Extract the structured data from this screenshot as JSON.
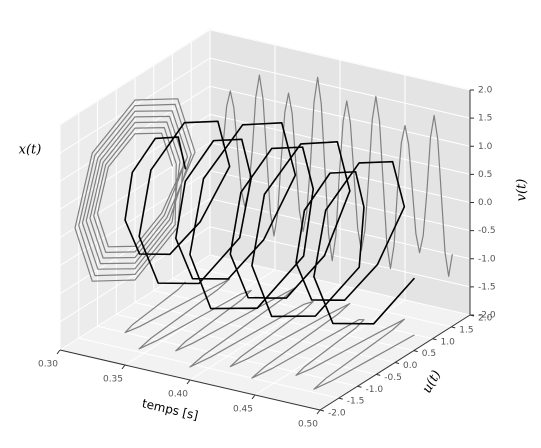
{
  "chart_data": {
    "type": "line3d",
    "xlabel": "temps [s]",
    "ylabel": "u(t)",
    "zlabel": "v(t)",
    "annotation": "x(t)",
    "color": "#000000",
    "projection_color": "#808080",
    "xlim": [
      0.3,
      0.5
    ],
    "ylim": [
      -2.0,
      2.0
    ],
    "zlim": [
      -2.0,
      2.0
    ],
    "xticks": [
      {
        "value": 0.3,
        "label": "0.30"
      },
      {
        "value": 0.35,
        "label": "0.35"
      },
      {
        "value": 0.4,
        "label": "0.40"
      },
      {
        "value": 0.45,
        "label": "0.45"
      },
      {
        "value": 0.5,
        "label": "0.50"
      }
    ],
    "yticks": [
      {
        "value": -2.0,
        "label": "-2.0"
      },
      {
        "value": -1.5,
        "label": "-1.5"
      },
      {
        "value": -1.0,
        "label": "-1.0"
      },
      {
        "value": -0.5,
        "label": "-0.5"
      },
      {
        "value": 0.0,
        "label": "0.0"
      },
      {
        "value": 0.5,
        "label": "0.5"
      },
      {
        "value": 1.0,
        "label": "1.0"
      },
      {
        "value": 1.5,
        "label": "1.5"
      },
      {
        "value": 2.0,
        "label": "2.0"
      }
    ],
    "zticks": [
      {
        "value": -2.0,
        "label": "-2.0"
      },
      {
        "value": -1.5,
        "label": "-1.5"
      },
      {
        "value": -1.0,
        "label": "-1.0"
      },
      {
        "value": -0.5,
        "label": "-0.5"
      },
      {
        "value": 0.0,
        "label": "0.0"
      },
      {
        "value": 0.5,
        "label": "0.5"
      },
      {
        "value": 1.0,
        "label": "1.0"
      },
      {
        "value": 1.5,
        "label": "1.5"
      },
      {
        "value": 2.0,
        "label": "2.0"
      }
    ],
    "t": [
      0.31,
      0.3128,
      0.3156,
      0.3184,
      0.3212,
      0.324,
      0.3268,
      0.3296,
      0.3324,
      0.3352,
      0.338,
      0.3408,
      0.3436,
      0.3464,
      0.3492,
      0.352,
      0.3548,
      0.3576,
      0.3604,
      0.3632,
      0.366,
      0.3688,
      0.3716,
      0.3744,
      0.3772,
      0.38,
      0.3828,
      0.3856,
      0.3884,
      0.3912,
      0.394,
      0.3968,
      0.3996,
      0.4024,
      0.4052,
      0.408,
      0.4108,
      0.4136,
      0.4164,
      0.4192,
      0.422,
      0.4248,
      0.4276,
      0.4304,
      0.4332,
      0.436,
      0.4388,
      0.4416,
      0.4444,
      0.4472,
      0.45,
      0.4528,
      0.4556,
      0.4584,
      0.4612,
      0.464,
      0.4668,
      0.4696,
      0.4724,
      0.4752,
      0.478,
      0.4808,
      0.4836,
      0.4864
    ],
    "u": [
      1,
      0.71,
      0,
      -0.71,
      -1,
      -0.71,
      0,
      0.71,
      1.4,
      0.99,
      0,
      -0.99,
      -1.4,
      -0.99,
      0,
      0.99,
      1.2,
      0.85,
      0,
      -0.85,
      -1.2,
      -0.85,
      0,
      0.85,
      1.6,
      1.14,
      0,
      -1.14,
      -1.6,
      -1.14,
      0,
      1.14,
      1.3,
      0.92,
      0,
      -0.92,
      -1.3,
      -0.92,
      0,
      0.92,
      1.5,
      1.07,
      0,
      -1.07,
      -1.5,
      -1.07,
      0,
      1.07,
      1.1,
      0.78,
      0,
      -0.78,
      -1.1,
      -0.78,
      0,
      0.78,
      1.4,
      0.99,
      0,
      -0.99,
      -1.4,
      -0.99,
      0,
      0.99
    ],
    "v": [
      0,
      0.71,
      1,
      0.71,
      0,
      -0.71,
      -1,
      -0.71,
      0,
      0.99,
      1.4,
      0.99,
      0,
      -0.99,
      -1.4,
      -0.99,
      0,
      0.85,
      1.2,
      0.85,
      0,
      -0.85,
      -1.2,
      -0.85,
      0,
      1.14,
      1.6,
      1.14,
      0,
      -1.14,
      -1.6,
      -1.14,
      0,
      0.92,
      1.3,
      0.92,
      0,
      -0.92,
      -1.3,
      -0.92,
      0,
      1.07,
      1.5,
      1.07,
      0,
      -1.07,
      -1.5,
      -1.07,
      0,
      0.78,
      1.1,
      0.78,
      0,
      -0.78,
      -1.1,
      -0.78,
      0,
      0.99,
      1.4,
      0.99,
      0,
      -0.99,
      -1.4,
      -0.99
    ]
  }
}
